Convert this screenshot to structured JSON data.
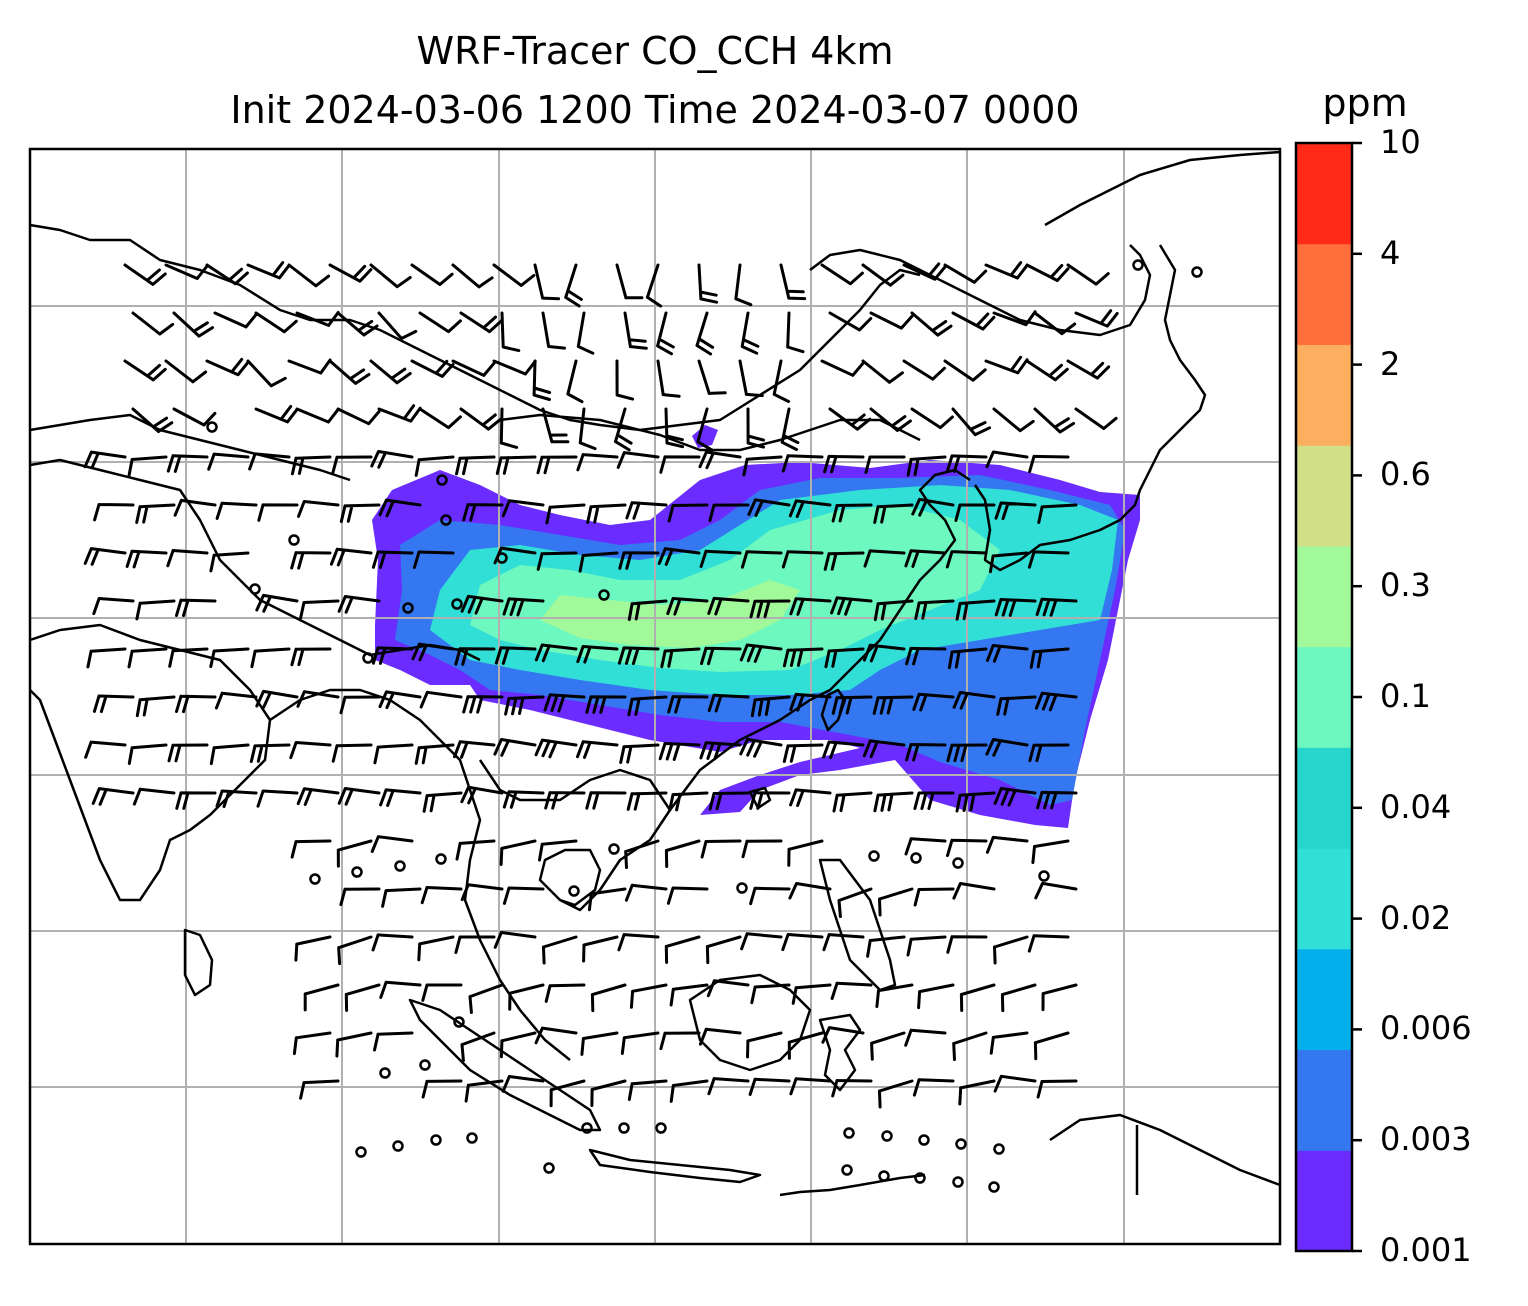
{
  "title": {
    "line1": "WRF-Tracer CO_CCH 4km",
    "line2": "Init 2024-03-06 1200 Time 2024-03-07 0000"
  },
  "colorbar": {
    "unit": "ppm",
    "levels": [
      "0.001",
      "0.003",
      "0.006",
      "0.02",
      "0.04",
      "0.1",
      "0.3",
      "0.6",
      "2",
      "4",
      "10"
    ],
    "colors": [
      "#6a2cff",
      "#3477f0",
      "#04b0ec",
      "#31dfd6",
      "#27d5cc",
      "#6cf8bf",
      "#a2f99a",
      "#d1df86",
      "#fdaf60",
      "#ff6e3b",
      "#fe2a17"
    ]
  },
  "map": {
    "gridlines": "on",
    "plume_colors": {
      "outer": "#6a2cff",
      "mid_blue": "#3477f0",
      "cyan": "#31dfd6",
      "green": "#6cf8bf",
      "yellow_green": "#a2f99a"
    },
    "coastline_color": "#000000",
    "grid_color": "#b0b0b0",
    "barb_color": "#000000"
  }
}
